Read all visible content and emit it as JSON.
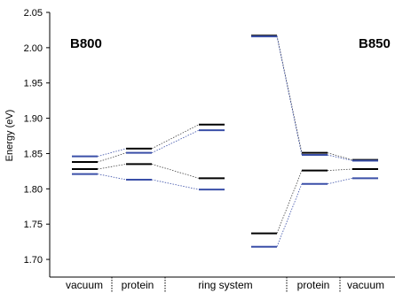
{
  "chart_data": {
    "type": "energy-level diagram",
    "ylabel": "Energy (eV)",
    "ylim": [
      1.675,
      2.05
    ],
    "yticks": [
      1.7,
      1.75,
      1.8,
      1.85,
      1.9,
      1.95,
      2.0,
      2.05
    ],
    "ytick_labels": [
      "1.70",
      "1.75",
      "1.80",
      "1.85",
      "1.90",
      "1.95",
      "2.00",
      "2.05"
    ],
    "colors": {
      "black_level": "#000000",
      "blue_level": "#3a4fa8",
      "connector": "#444444"
    },
    "categories": [
      {
        "label": "vacuum"
      },
      {
        "label": "protein"
      },
      {
        "label": "ring system"
      },
      {
        "label": "protein"
      },
      {
        "label": "vacuum"
      }
    ],
    "groups": [
      {
        "label": "B800"
      },
      {
        "label": "B850"
      }
    ],
    "columns": [
      {
        "id": "b800_vac",
        "levels": [
          {
            "y": 1.846,
            "color": "blue"
          },
          {
            "y": 1.838,
            "color": "black"
          },
          {
            "y": 1.828,
            "color": "black"
          },
          {
            "y": 1.821,
            "color": "blue"
          }
        ]
      },
      {
        "id": "b800_prot",
        "levels": [
          {
            "y": 1.857,
            "color": "black"
          },
          {
            "y": 1.851,
            "color": "blue"
          },
          {
            "y": 1.835,
            "color": "black"
          },
          {
            "y": 1.813,
            "color": "blue"
          }
        ]
      },
      {
        "id": "b800_ring",
        "levels": [
          {
            "y": 1.891,
            "color": "black"
          },
          {
            "y": 1.883,
            "color": "blue"
          },
          {
            "y": 1.815,
            "color": "black"
          },
          {
            "y": 1.799,
            "color": "blue"
          }
        ]
      },
      {
        "id": "b850_ring",
        "levels": [
          {
            "y": 2.017,
            "color": "black"
          },
          {
            "y": 2.016,
            "color": "blue"
          },
          {
            "y": 1.737,
            "color": "black"
          },
          {
            "y": 1.718,
            "color": "blue"
          }
        ]
      },
      {
        "id": "b850_prot",
        "levels": [
          {
            "y": 1.851,
            "color": "black"
          },
          {
            "y": 1.848,
            "color": "blue"
          },
          {
            "y": 1.826,
            "color": "black"
          },
          {
            "y": 1.807,
            "color": "blue"
          }
        ]
      },
      {
        "id": "b850_vac",
        "levels": [
          {
            "y": 1.841,
            "color": "black"
          },
          {
            "y": 1.84,
            "color": "blue"
          },
          {
            "y": 1.828,
            "color": "black"
          },
          {
            "y": 1.815,
            "color": "blue"
          }
        ]
      }
    ],
    "connections": [
      [
        "b800_vac",
        "b800_prot"
      ],
      [
        "b800_prot",
        "b800_ring"
      ],
      [
        "b850_ring",
        "b850_prot"
      ],
      [
        "b850_prot",
        "b850_vac"
      ]
    ]
  }
}
